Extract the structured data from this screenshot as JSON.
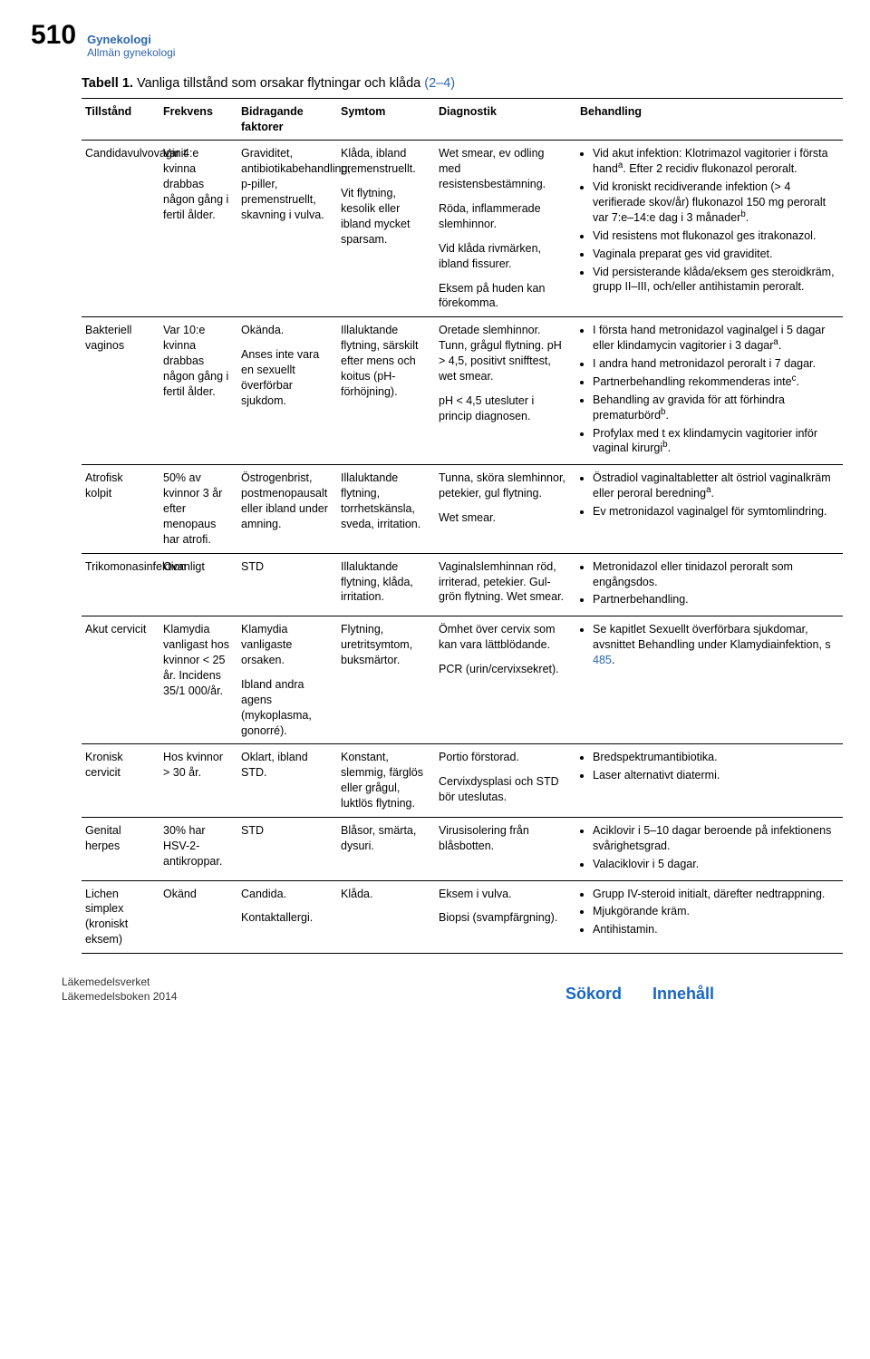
{
  "header": {
    "page_number": "510",
    "top": "Gynekologi",
    "sub": "Allmän gynekologi"
  },
  "caption": {
    "strong": "Tabell 1.",
    "rest": " Vanliga tillstånd som orsakar flytningar och klåda ",
    "ref": "(2–4)"
  },
  "columns": [
    "Tillstånd",
    "Frekvens",
    "Bidragande faktorer",
    "Symtom",
    "Diagnostik",
    "Behandling"
  ],
  "rows": [
    {
      "tillstand": "Candidavulvovaginit",
      "frekvens": "Var 4:e kvinna drabbas någon gång i fertil ålder.",
      "faktorer": "Graviditet, antibiotikabehandling, p-piller, premenstruellt, skavning i vulva.",
      "symtom_paras": [
        "Klåda, ibland premenstruellt.",
        "Vit flytning, kesolik eller ibland mycket sparsam."
      ],
      "diagnostik_paras": [
        "Wet smear, ev odling med resistensbestämning.",
        "Röda, inflammerade slemhinnor.",
        "Vid klåda rivmärken, ibland fissurer.",
        "Eksem på huden kan förekomma."
      ],
      "behandling_bullets": [
        "Vid akut infektion: Klotrimazol vagitorier i första hand<sup>a</sup>. Efter 2 recidiv flukonazol peroralt.",
        "Vid kroniskt recidiverande infektion (> 4 verifierade skov/år) flukonazol 150 mg peroralt var 7:e–14:e dag i 3 månader<sup>b</sup>.",
        "Vid resistens mot flukonazol ges itrakonazol.",
        "Vaginala preparat ges vid graviditet.",
        "Vid persisterande klåda/eksem ges steroidkräm, grupp II–III, och/eller antihistamin peroralt."
      ]
    },
    {
      "tillstand": "Bakteriell vaginos",
      "frekvens": "Var 10:e kvinna drabbas någon gång i fertil ålder.",
      "faktorer_paras": [
        "Okända.",
        "Anses inte vara en sexuellt överförbar sjukdom."
      ],
      "symtom": "Illaluktande flytning, särskilt efter mens och koitus (pH-förhöjning).",
      "diagnostik_paras": [
        "Oretade slemhinnor. Tunn, grågul flytning. pH > 4,5, positivt snifftest, wet smear.",
        "pH < 4,5 utesluter i princip diagnosen."
      ],
      "behandling_bullets": [
        "I första hand metronidazol vaginalgel i 5 dagar eller klindamycin vagitorier i 3 dagar<sup>a</sup>.",
        "I andra hand metronidazol peroralt i 7 dagar.",
        "Partnerbehandling rekommenderas inte<sup>c</sup>.",
        "Behandling av gravida för att förhindra prematurbörd<sup>b</sup>.",
        "Profylax med t ex klindamycin vagitorier inför vaginal kirurgi<sup>b</sup>."
      ]
    },
    {
      "tillstand": "Atrofisk kolpit",
      "frekvens": "50% av kvinnor 3 år efter menopaus har atrofi.",
      "faktorer": "Östrogenbrist, postmenopausalt eller ibland under amning.",
      "symtom": "Illaluktande flytning, torrhetskänsla, sveda, irritation.",
      "diagnostik_paras": [
        "Tunna, sköra slemhinnor, petekier, gul flytning.",
        "Wet smear."
      ],
      "behandling_bullets": [
        "Östradiol vaginaltabletter alt östriol vaginalkräm eller peroral beredning<sup>a</sup>.",
        "Ev metronidazol vaginalgel för symtomlindring."
      ]
    },
    {
      "tillstand": "Trikomonasinfektion",
      "frekvens": "Ovanligt",
      "faktorer": "STD",
      "symtom": "Illaluktande flytning, klåda, irritation.",
      "diagnostik": "Vaginalslemhinnan röd, irriterad, petekier. Gul-grön flytning. Wet smear.",
      "behandling_bullets": [
        "Metronidazol eller tinidazol peroralt som engångsdos.",
        "Partnerbehandling."
      ]
    },
    {
      "tillstand": "Akut cervicit",
      "frekvens": "Klamydia vanligast hos kvinnor < 25 år. Incidens 35/1 000/år.",
      "faktorer_paras": [
        "Klamydia vanligaste orsaken.",
        "Ibland andra agens (mykoplasma, gonorré)."
      ],
      "symtom": "Flytning, uretritsymtom, buksmärtor.",
      "diagnostik_paras": [
        "Ömhet över cervix som kan vara lättblödande.",
        "PCR (urin/cervixsekret)."
      ],
      "behandling_bullets": [
        "Se kapitlet Sexuellt överförbara sjukdomar, avsnittet Behandling under Klamydiainfektion, s <span class=\"ref-blue\">485</span>."
      ]
    },
    {
      "tillstand": "Kronisk cervicit",
      "frekvens": "Hos kvinnor > 30 år.",
      "faktorer": "Oklart, ibland STD.",
      "symtom": "Konstant, slemmig, färglös eller grågul, luktlös flytning.",
      "diagnostik_paras": [
        "Portio förstorad.",
        "Cervixdysplasi och STD bör uteslutas."
      ],
      "behandling_bullets": [
        "Bredspektrumantibiotika.",
        "Laser alternativt diatermi."
      ]
    },
    {
      "tillstand": "Genital herpes",
      "frekvens": "30% har HSV-2-antikroppar.",
      "faktorer": "STD",
      "symtom": "Blåsor, smärta, dysuri.",
      "diagnostik": "Virusisolering från blåsbotten.",
      "behandling_bullets": [
        "Aciklovir i 5–10 dagar beroende på infektionens svårighetsgrad.",
        "Valaciklovir i 5 dagar."
      ]
    },
    {
      "tillstand": "Lichen simplex (kroniskt eksem)",
      "frekvens": "Okänd",
      "faktorer_paras": [
        "Candida.",
        "Kontaktallergi."
      ],
      "symtom": "Klåda.",
      "diagnostik_paras": [
        "Eksem i vulva.",
        "Biopsi (svampfärgning)."
      ],
      "behandling_bullets": [
        "Grupp IV-steroid initialt, därefter nedtrappning.",
        "Mjukgörande kräm.",
        "Antihistamin."
      ]
    }
  ],
  "footer": {
    "left_lines": [
      "Läkemedelsverket",
      "Läkemedelsboken 2014"
    ],
    "links": [
      "Sökord",
      "Innehåll"
    ]
  }
}
